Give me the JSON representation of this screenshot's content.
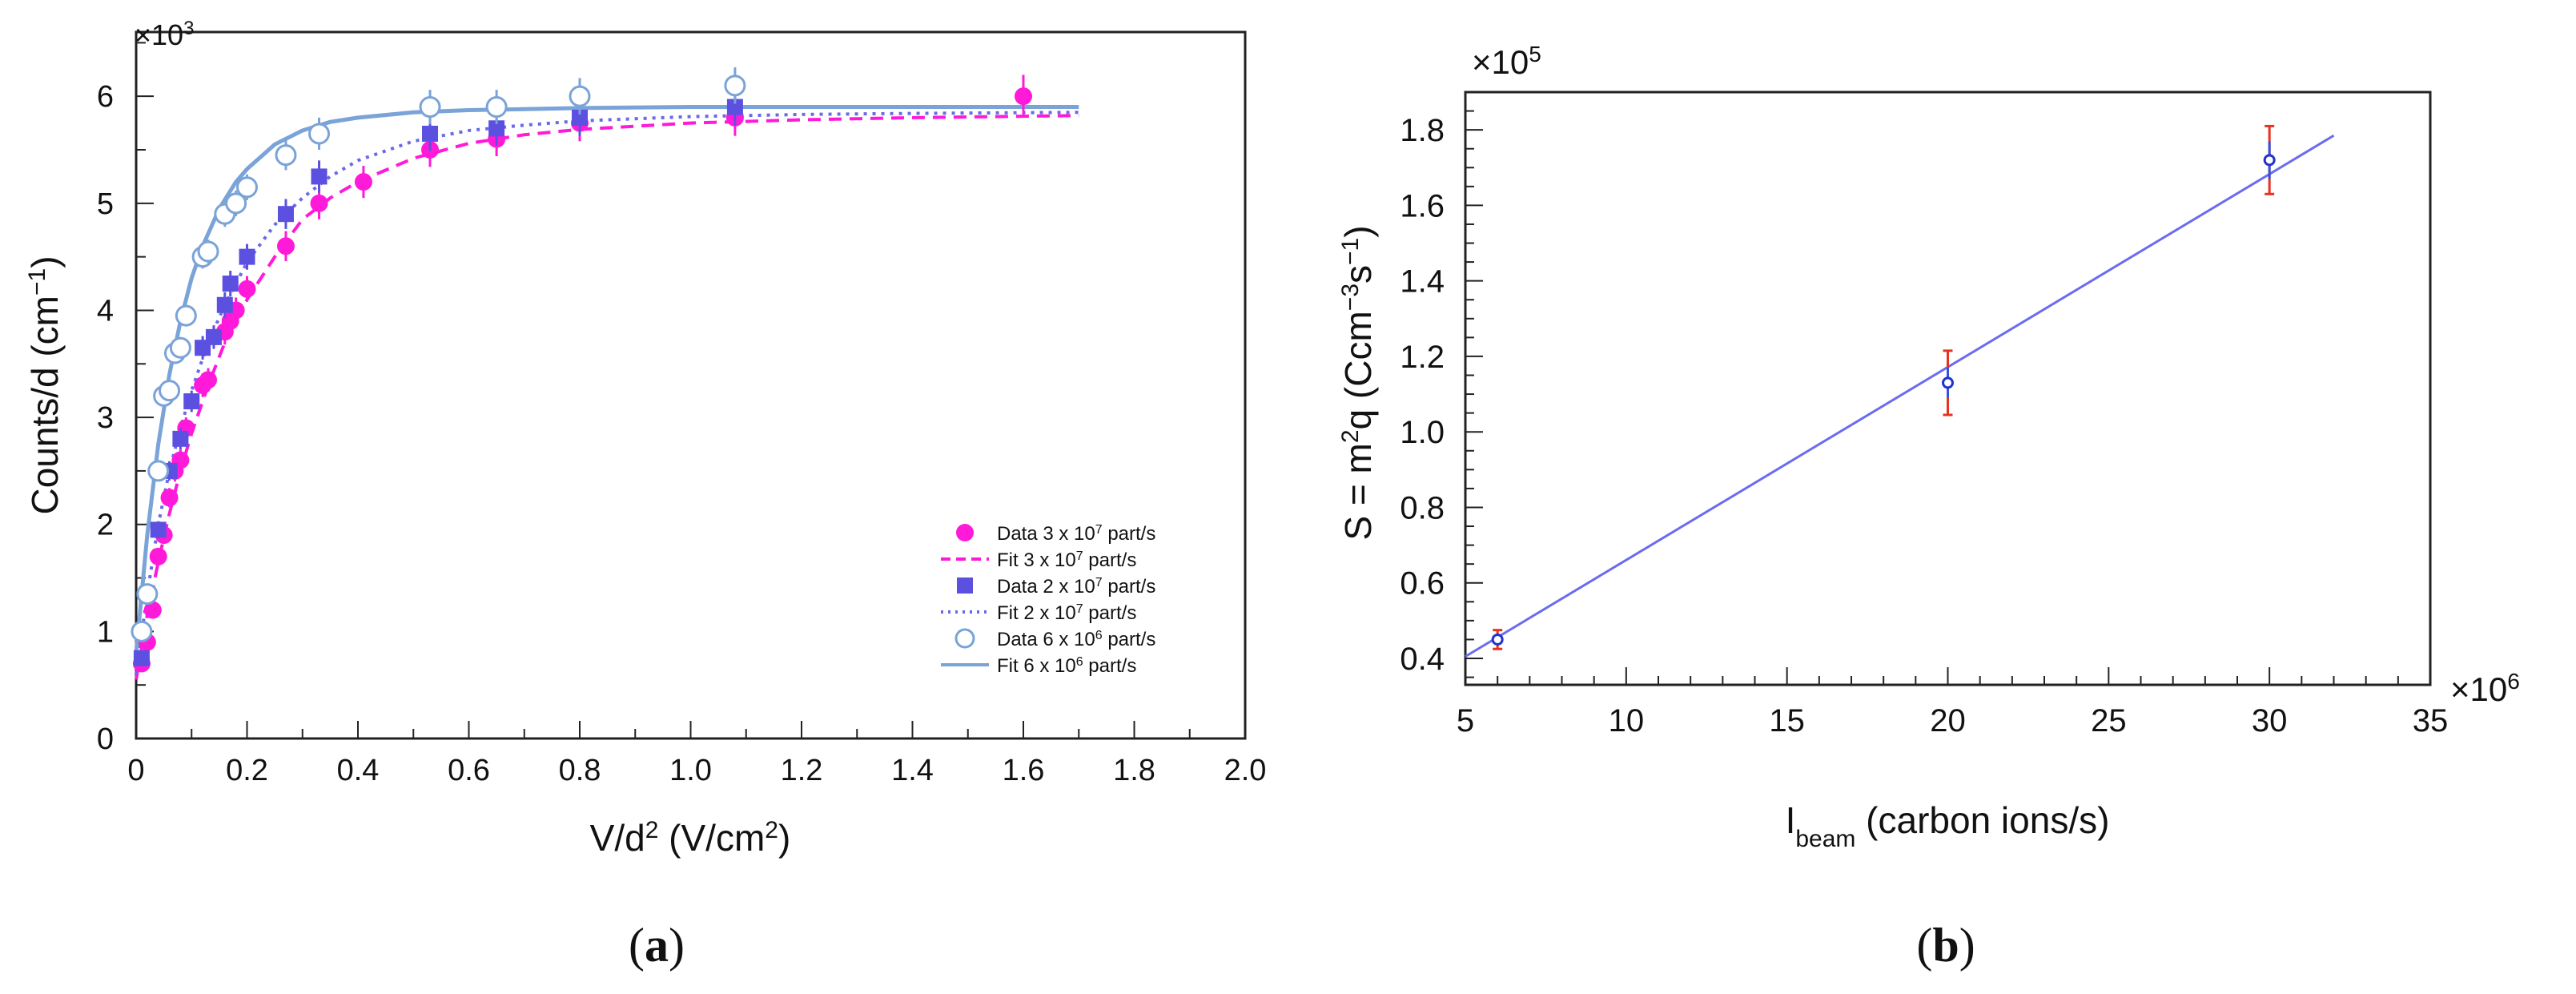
{
  "chart_data": [
    {
      "panel": "a",
      "type": "scatter",
      "xlabel_main": "V/d",
      "xlabel_sup": "2",
      "xlabel_rest": " (V/cm",
      "xlabel_sup2": "2",
      "xlabel_end": ")",
      "ylabel_main": "Counts/d (cm",
      "ylabel_sup": "−1",
      "ylabel_end": ")",
      "y_multiplier": "×10",
      "y_multiplier_exp": "3",
      "xlim": [
        0,
        2.0
      ],
      "ylim": [
        0,
        6.6
      ],
      "xticks": [
        "0",
        "0.2",
        "0.4",
        "0.6",
        "0.8",
        "1.0",
        "1.2",
        "1.4",
        "1.6",
        "1.8",
        "2.0"
      ],
      "yticks": [
        "0",
        "1",
        "2",
        "3",
        "4",
        "5",
        "6"
      ],
      "grid": false,
      "legend_position": "bottom-right",
      "series": [
        {
          "name": "Data 3 x 10^7 part/s",
          "legend_text": "Data 3 x 10",
          "legend_exp": "7",
          "legend_unit": " part/s",
          "kind": "data",
          "marker": "filled-circle",
          "color": "#ff1ad9",
          "x": [
            0.01,
            0.02,
            0.03,
            0.04,
            0.05,
            0.06,
            0.07,
            0.08,
            0.09,
            0.12,
            0.13,
            0.16,
            0.17,
            0.18,
            0.2,
            0.27,
            0.33,
            0.41,
            0.53,
            0.65,
            0.8,
            1.08,
            1.6
          ],
          "y": [
            0.7,
            0.9,
            1.2,
            1.7,
            1.9,
            2.25,
            2.5,
            2.6,
            2.9,
            3.3,
            3.35,
            3.8,
            3.9,
            4.0,
            4.2,
            4.6,
            5.0,
            5.2,
            5.5,
            5.6,
            5.75,
            5.8,
            6.0
          ],
          "yerr": [
            0.05,
            0.05,
            0.06,
            0.08,
            0.08,
            0.09,
            0.1,
            0.1,
            0.1,
            0.11,
            0.11,
            0.12,
            0.12,
            0.12,
            0.12,
            0.14,
            0.15,
            0.15,
            0.16,
            0.16,
            0.17,
            0.17,
            0.2
          ]
        },
        {
          "name": "Fit 3 x 10^7 part/s",
          "legend_text": "Fit  3 x 10",
          "legend_exp": "7",
          "legend_unit": " part/s",
          "kind": "fit",
          "line": "dashed",
          "color": "#ff1ad9",
          "x": [
            0.0,
            0.02,
            0.04,
            0.06,
            0.08,
            0.1,
            0.13,
            0.16,
            0.2,
            0.25,
            0.3,
            0.35,
            0.4,
            0.5,
            0.6,
            0.7,
            0.8,
            0.9,
            1.0,
            1.2,
            1.4,
            1.7
          ],
          "y": [
            0.55,
            1.15,
            1.65,
            2.1,
            2.5,
            2.85,
            3.3,
            3.7,
            4.1,
            4.5,
            4.85,
            5.05,
            5.2,
            5.42,
            5.56,
            5.64,
            5.69,
            5.72,
            5.75,
            5.78,
            5.8,
            5.82
          ]
        },
        {
          "name": "Data 2 x 10^7 part/s",
          "legend_text": "Data 2 x 10",
          "legend_exp": "7",
          "legend_unit": " part/s",
          "kind": "data",
          "marker": "filled-square",
          "color": "#5b50e0",
          "x": [
            0.01,
            0.02,
            0.04,
            0.06,
            0.08,
            0.1,
            0.12,
            0.14,
            0.16,
            0.17,
            0.2,
            0.27,
            0.33,
            0.53,
            0.65,
            0.8,
            1.08
          ],
          "y": [
            0.75,
            1.35,
            1.95,
            2.5,
            2.8,
            3.15,
            3.65,
            3.75,
            4.05,
            4.25,
            4.5,
            4.9,
            5.25,
            5.65,
            5.7,
            5.8,
            5.9
          ],
          "yerr": [
            0.05,
            0.06,
            0.08,
            0.09,
            0.1,
            0.1,
            0.11,
            0.11,
            0.12,
            0.12,
            0.12,
            0.14,
            0.15,
            0.16,
            0.16,
            0.17,
            0.17
          ]
        },
        {
          "name": "Fit 2 x 10^7 part/s",
          "legend_text": "Fit  2 x 10",
          "legend_exp": "7",
          "legend_unit": " part/s",
          "kind": "fit",
          "line": "dotted",
          "color": "#6a6ae8",
          "x": [
            0.0,
            0.02,
            0.04,
            0.06,
            0.08,
            0.1,
            0.13,
            0.16,
            0.2,
            0.25,
            0.3,
            0.35,
            0.4,
            0.5,
            0.6,
            0.7,
            0.8,
            1.0,
            1.2,
            1.4,
            1.7
          ],
          "y": [
            0.6,
            1.35,
            2.0,
            2.5,
            2.9,
            3.25,
            3.7,
            4.05,
            4.45,
            4.8,
            5.05,
            5.25,
            5.4,
            5.58,
            5.68,
            5.73,
            5.77,
            5.81,
            5.83,
            5.84,
            5.85
          ]
        },
        {
          "name": "Data 6 x 10^6 part/s",
          "legend_text": "Data 6 x 10",
          "legend_exp": "6",
          "legend_unit": " part/s",
          "kind": "data",
          "marker": "open-circle",
          "color": "#7aa3d8",
          "x": [
            0.01,
            0.02,
            0.04,
            0.05,
            0.06,
            0.07,
            0.08,
            0.09,
            0.12,
            0.13,
            0.16,
            0.18,
            0.2,
            0.27,
            0.33,
            0.53,
            0.65,
            0.8,
            1.08
          ],
          "y": [
            1.0,
            1.35,
            2.5,
            3.2,
            3.25,
            3.6,
            3.65,
            3.95,
            4.5,
            4.55,
            4.9,
            5.0,
            5.15,
            5.45,
            5.65,
            5.9,
            5.9,
            6.0,
            6.1
          ],
          "yerr": [
            0.05,
            0.06,
            0.08,
            0.1,
            0.1,
            0.1,
            0.1,
            0.1,
            0.11,
            0.11,
            0.12,
            0.12,
            0.12,
            0.14,
            0.15,
            0.16,
            0.16,
            0.17,
            0.17
          ]
        },
        {
          "name": "Fit 6 x 10^6 part/s",
          "legend_text": "Fit  6 x 10",
          "legend_exp": "6",
          "legend_unit": " part/s",
          "kind": "fit",
          "line": "solid",
          "color": "#7aa3d8",
          "x": [
            0.0,
            0.02,
            0.04,
            0.06,
            0.08,
            0.1,
            0.12,
            0.15,
            0.18,
            0.2,
            0.25,
            0.3,
            0.35,
            0.4,
            0.5,
            0.6,
            0.7,
            0.8,
            1.0,
            1.2,
            1.4,
            1.7
          ],
          "y": [
            0.8,
            1.9,
            2.75,
            3.4,
            3.9,
            4.3,
            4.6,
            4.95,
            5.2,
            5.32,
            5.55,
            5.68,
            5.76,
            5.8,
            5.85,
            5.87,
            5.88,
            5.89,
            5.9,
            5.9,
            5.9,
            5.9
          ]
        }
      ]
    },
    {
      "panel": "b",
      "type": "scatter",
      "xlabel_main": "I",
      "xlabel_sub": "beam",
      "xlabel_rest": " (carbon ions/s)",
      "ylabel_main": "S = m",
      "ylabel_sup": "2",
      "ylabel_mid": "q  (Ccm",
      "ylabel_sup2": "−3",
      "ylabel_mid2": "s",
      "ylabel_sup3": "−1",
      "ylabel_end": ")",
      "y_multiplier": "×10",
      "y_multiplier_exp": "5",
      "x_multiplier": "×10",
      "x_multiplier_exp": "6",
      "xlim": [
        5,
        35
      ],
      "ylim": [
        0.33,
        1.9
      ],
      "xticks": [
        "5",
        "10",
        "15",
        "20",
        "25",
        "30",
        "35"
      ],
      "yticks": [
        "0.4",
        "0.6",
        "0.8",
        "1.0",
        "1.2",
        "1.4",
        "1.6",
        "1.8"
      ],
      "grid": false,
      "points": {
        "x": [
          6,
          20,
          30
        ],
        "y": [
          0.45,
          1.13,
          1.72
        ],
        "yerr_blue": [
          0.015,
          0.04,
          0.05
        ],
        "yerr_red": [
          0.025,
          0.085,
          0.09
        ]
      },
      "fit_line": {
        "x": [
          5,
          32
        ],
        "y": [
          0.405,
          1.785
        ]
      },
      "colors": {
        "line": "#6a6cf0",
        "marker": "#2233cc",
        "err_red": "#e53322",
        "err_blue": "#3355dd"
      }
    }
  ],
  "panel_labels": {
    "a": "a",
    "b": "b"
  }
}
